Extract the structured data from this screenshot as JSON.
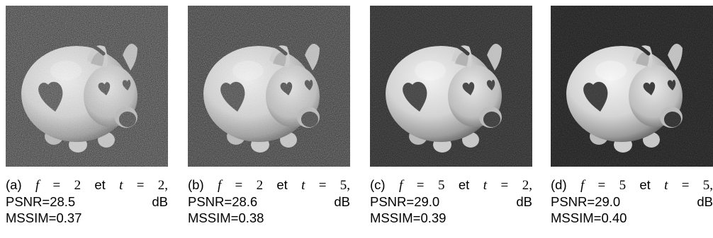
{
  "figure": {
    "panels": [
      {
        "label": "(a)",
        "var1": "f",
        "eq1": "=",
        "val1": "2",
        "conj": "et",
        "var2": "t",
        "eq2": "=",
        "val2": "2,",
        "psnr": "PSNR=28.5",
        "psnr_unit": "dB",
        "mssim": "MSSIM=0.37",
        "image": {
          "subject": "piggy-bank",
          "noise_level": 0.9
        }
      },
      {
        "label": "(b)",
        "var1": "f",
        "eq1": "=",
        "val1": "2",
        "conj": "et",
        "var2": "t",
        "eq2": "=",
        "val2": "5,",
        "psnr": "PSNR=28.6",
        "psnr_unit": "dB",
        "mssim": "MSSIM=0.38",
        "image": {
          "subject": "piggy-bank",
          "noise_level": 0.75
        }
      },
      {
        "label": "(c)",
        "var1": "f",
        "eq1": "=",
        "val1": "5",
        "conj": "et",
        "var2": "t",
        "eq2": "=",
        "val2": "2,",
        "psnr": "PSNR=29.0",
        "psnr_unit": "dB",
        "mssim": "MSSIM=0.39",
        "image": {
          "subject": "piggy-bank",
          "noise_level": 0.35
        }
      },
      {
        "label": "(d)",
        "var1": "f",
        "eq1": "=",
        "val1": "5",
        "conj": "et",
        "var2": "t",
        "eq2": "=",
        "val2": "5,",
        "psnr": "PSNR=29.0",
        "psnr_unit": "dB",
        "mssim": "MSSIM=0.40",
        "image": {
          "subject": "piggy-bank",
          "noise_level": 0.2
        }
      }
    ]
  }
}
